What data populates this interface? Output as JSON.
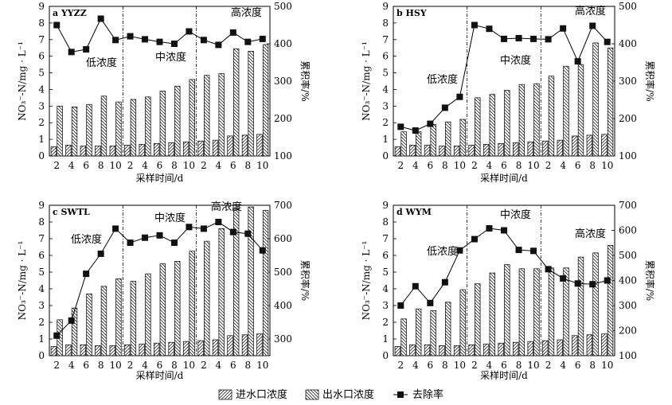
{
  "legend": {
    "inlet": "进水口浓度",
    "outlet": "出水口浓度",
    "removal": "去除率"
  },
  "chart_data": [
    {
      "type": "bar",
      "panel_label": "a  YYZZ",
      "xlabel": "采样时间/d",
      "ylabel": "NO₃⁻-N/mg · L⁻¹",
      "y2label": "累积率/%",
      "categories": [
        "2",
        "4",
        "6",
        "8",
        "10",
        "2",
        "4",
        "6",
        "8",
        "10",
        "2",
        "4",
        "6",
        "8",
        "10"
      ],
      "ylim": [
        0,
        9
      ],
      "y2lim": [
        100,
        500
      ],
      "yticks": [
        0,
        1,
        2,
        3,
        4,
        5,
        6,
        7,
        8,
        9
      ],
      "y2ticks": [
        100,
        200,
        300,
        400,
        500
      ],
      "phase_labels": [
        "低浓度",
        "中浓度",
        "高浓度"
      ],
      "series": [
        {
          "name": "进水口浓度",
          "values": [
            0.55,
            0.65,
            0.6,
            0.6,
            0.6,
            0.65,
            0.7,
            0.75,
            0.8,
            0.85,
            0.9,
            0.95,
            1.2,
            1.25,
            1.3
          ]
        },
        {
          "name": "出水口浓度",
          "values": [
            3.0,
            2.95,
            3.1,
            3.6,
            3.25,
            3.4,
            3.55,
            3.9,
            4.2,
            4.6,
            4.85,
            4.95,
            6.45,
            6.3,
            6.7
          ]
        },
        {
          "name": "去除率",
          "values": [
            450,
            378,
            385,
            467,
            410,
            420,
            412,
            405,
            400,
            433,
            410,
            397,
            430,
            405,
            413
          ]
        }
      ]
    },
    {
      "type": "bar",
      "panel_label": "b  HSY",
      "xlabel": "采样时间/d",
      "ylabel": "NO₃⁻-N/mg · L⁻¹",
      "y2label": "累积率/%",
      "categories": [
        "2",
        "4",
        "6",
        "8",
        "10",
        "2",
        "4",
        "6",
        "8",
        "10",
        "2",
        "4",
        "6",
        "8",
        "10"
      ],
      "ylim": [
        0,
        9
      ],
      "y2lim": [
        100,
        500
      ],
      "yticks": [
        0,
        1,
        2,
        3,
        4,
        5,
        6,
        7,
        8,
        9
      ],
      "y2ticks": [
        100,
        200,
        300,
        400,
        500
      ],
      "phase_labels": [
        "低浓度",
        "中浓度",
        "高浓度"
      ],
      "series": [
        {
          "name": "进水口浓度",
          "values": [
            0.55,
            0.65,
            0.65,
            0.6,
            0.6,
            0.65,
            0.7,
            0.75,
            0.8,
            0.85,
            0.9,
            0.95,
            1.2,
            1.25,
            1.3
          ]
        },
        {
          "name": "出水口浓度",
          "values": [
            1.45,
            1.45,
            1.9,
            2.05,
            2.2,
            3.5,
            3.7,
            3.95,
            4.3,
            4.35,
            4.8,
            5.4,
            5.5,
            6.8,
            6.5
          ]
        },
        {
          "name": "去除率",
          "values": [
            178,
            168,
            186,
            229,
            258,
            450,
            440,
            413,
            415,
            413,
            412,
            441,
            353,
            448,
            405
          ]
        }
      ]
    },
    {
      "type": "bar",
      "panel_label": "c  SWTL",
      "xlabel": "采样时间/d",
      "ylabel": "NO₃⁻-N/mg · L⁻¹",
      "y2label": "累积率/%",
      "categories": [
        "2",
        "4",
        "6",
        "8",
        "10",
        "2",
        "4",
        "6",
        "8",
        "10",
        "2",
        "4",
        "6",
        "8",
        "10"
      ],
      "ylim": [
        0,
        9
      ],
      "y2lim": [
        250,
        700
      ],
      "yticks": [
        0,
        1,
        2,
        3,
        4,
        5,
        6,
        7,
        8,
        9
      ],
      "y2ticks": [
        300,
        400,
        500,
        600,
        700
      ],
      "phase_labels": [
        "低浓度",
        "中浓度",
        "高浓度"
      ],
      "series": [
        {
          "name": "进水口浓度",
          "values": [
            0.55,
            0.65,
            0.65,
            0.6,
            0.6,
            0.65,
            0.7,
            0.75,
            0.8,
            0.85,
            0.9,
            0.95,
            1.2,
            1.25,
            1.3
          ]
        },
        {
          "name": "出水口浓度",
          "values": [
            2.15,
            2.85,
            3.7,
            4.15,
            4.6,
            4.45,
            4.9,
            5.5,
            5.65,
            6.25,
            6.85,
            7.6,
            8.8,
            8.9,
            8.7
          ]
        },
        {
          "name": "去除率",
          "values": [
            310,
            355,
            495,
            555,
            630,
            588,
            603,
            610,
            588,
            635,
            630,
            650,
            620,
            615,
            565
          ]
        }
      ]
    },
    {
      "type": "bar",
      "panel_label": "d  WYM",
      "xlabel": "采样时间/d",
      "ylabel": "NO₃⁻-N/mg · L⁻¹",
      "y2label": "累积率/%",
      "categories": [
        "2",
        "4",
        "6",
        "8",
        "10",
        "2",
        "4",
        "6",
        "8",
        "10",
        "2",
        "4",
        "6",
        "8",
        "10"
      ],
      "ylim": [
        0,
        9
      ],
      "y2lim": [
        100,
        700
      ],
      "yticks": [
        0,
        1,
        2,
        3,
        4,
        5,
        6,
        7,
        8,
        9
      ],
      "y2ticks": [
        100,
        200,
        300,
        400,
        500,
        600,
        700
      ],
      "phase_labels": [
        "低浓度",
        "中浓度",
        "高浓度"
      ],
      "series": [
        {
          "name": "进水口浓度",
          "values": [
            0.55,
            0.65,
            0.65,
            0.6,
            0.6,
            0.65,
            0.7,
            0.75,
            0.8,
            0.85,
            0.9,
            0.95,
            1.2,
            1.25,
            1.3
          ]
        },
        {
          "name": "出水口浓度",
          "values": [
            2.2,
            2.8,
            2.7,
            3.2,
            3.95,
            4.3,
            4.95,
            5.45,
            5.2,
            5.2,
            5.25,
            5.25,
            5.9,
            6.15,
            6.6
          ]
        },
        {
          "name": "去除率",
          "values": [
            300,
            377,
            310,
            393,
            520,
            565,
            608,
            600,
            522,
            518,
            445,
            408,
            388,
            385,
            400
          ]
        }
      ]
    }
  ]
}
